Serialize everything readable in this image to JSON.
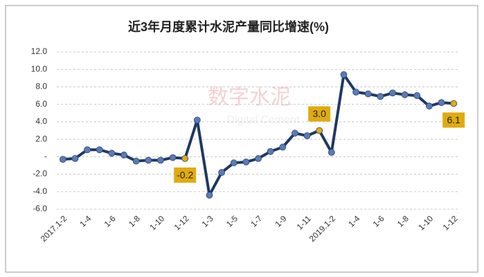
{
  "chart_data": {
    "type": "line",
    "title": "近3年月度累计水泥产量同比增速(%)",
    "watermark": [
      "数字水泥",
      "Digital Cement"
    ],
    "categories": [
      "2017.1-2",
      null,
      "1-4",
      null,
      "1-6",
      null,
      "1-8",
      null,
      "1-10",
      null,
      "1-12",
      null,
      "1-3",
      null,
      "1-5",
      null,
      "1-7",
      null,
      "1-9",
      null,
      "1-11",
      null,
      "2019.1-2",
      null,
      "1-4",
      null,
      "1-6",
      null,
      "1-8",
      null,
      "1-10",
      null,
      "1-12"
    ],
    "values": [
      -0.3,
      -0.2,
      0.8,
      0.8,
      0.4,
      0.2,
      -0.5,
      -0.4,
      -0.4,
      -0.1,
      -0.2,
      4.2,
      -4.4,
      -1.8,
      -0.7,
      -0.6,
      -0.2,
      0.6,
      1.1,
      2.7,
      2.4,
      3.0,
      0.5,
      9.4,
      7.4,
      7.2,
      6.9,
      7.3,
      7.1,
      7.0,
      5.8,
      6.2,
      6.1
    ],
    "value_labels": [
      null,
      null,
      null,
      null,
      null,
      null,
      null,
      null,
      null,
      null,
      "-0.2",
      null,
      null,
      null,
      null,
      null,
      null,
      null,
      null,
      null,
      null,
      "3.0",
      null,
      null,
      null,
      null,
      null,
      null,
      null,
      null,
      null,
      null,
      "6.1"
    ],
    "color": "#1f3864",
    "marker_color": "#5a7bb5",
    "highlight_color": "#e0ab10",
    "ylim": [
      -6,
      12
    ],
    "yticks": [
      {
        "value": -6,
        "label": "-6.0"
      },
      {
        "value": -4,
        "label": "-4.0"
      },
      {
        "value": -2,
        "label": "-2.0"
      },
      {
        "value": 0,
        "label": "-"
      },
      {
        "value": 2,
        "label": "2.0"
      },
      {
        "value": 4,
        "label": "4.0"
      },
      {
        "value": 6,
        "label": "6.0"
      },
      {
        "value": 8,
        "label": "8.0"
      },
      {
        "value": 10,
        "label": "10.0"
      },
      {
        "value": 12,
        "label": "12.0"
      }
    ],
    "grid": true
  }
}
